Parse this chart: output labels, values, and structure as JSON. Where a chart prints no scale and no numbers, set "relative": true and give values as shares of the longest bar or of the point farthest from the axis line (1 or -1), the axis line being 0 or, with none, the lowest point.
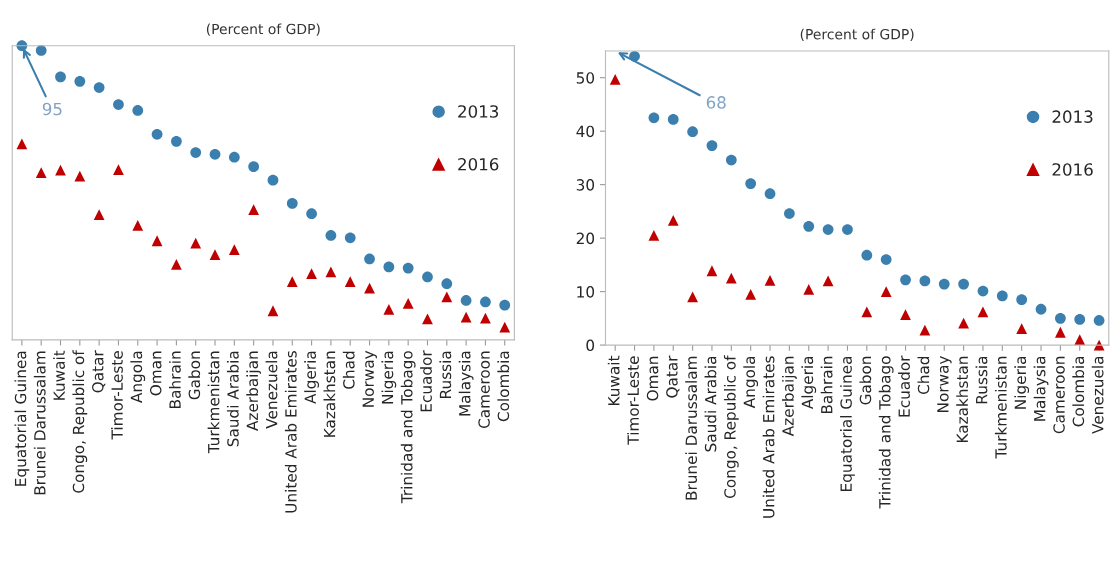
{
  "chart_data": [
    {
      "type": "scatter",
      "subtitle": "(Percent of GDP)",
      "relative": true,
      "grid": false,
      "legend": "top right",
      "annotations": [
        "95"
      ],
      "categories": [
        "Equatorial Guinea",
        "Brunei Darussalam",
        "Kuwait",
        "Congo, Republic of",
        "Qatar",
        "Timor-Leste",
        "Angola",
        "Oman",
        "Bahrain",
        "Gabon",
        "Turkmenistan",
        "Saudi Arabia",
        "Azerbaijan",
        "Venezuela",
        "United Arab Emirates",
        "Algeria",
        "Kazakhstan",
        "Chad",
        "Norway",
        "Nigeria",
        "Trinidad and Tobago",
        "Ecuador",
        "Russia",
        "Malaysia",
        "Cameroon",
        "Colombia"
      ],
      "series": [
        {
          "name": "2013",
          "color": "#3a7fae",
          "marker": "circle",
          "values": [
            1.0,
            0.984,
            0.894,
            0.879,
            0.858,
            0.8,
            0.78,
            0.699,
            0.675,
            0.637,
            0.631,
            0.621,
            0.589,
            0.543,
            0.464,
            0.429,
            0.355,
            0.347,
            0.275,
            0.248,
            0.244,
            0.214,
            0.191,
            0.134,
            0.129,
            0.118
          ]
        },
        {
          "name": "2016",
          "color": "#c00000",
          "marker": "triangle",
          "values": [
            0.666,
            0.569,
            0.577,
            0.557,
            0.426,
            0.579,
            0.389,
            0.337,
            0.257,
            0.329,
            0.29,
            0.307,
            0.443,
            0.099,
            0.198,
            0.225,
            0.231,
            0.198,
            0.176,
            0.104,
            0.124,
            0.071,
            0.146,
            0.077,
            0.074,
            0.043
          ]
        }
      ]
    },
    {
      "type": "scatter",
      "subtitle": "(Percent of GDP)",
      "ylim": [
        0,
        55
      ],
      "yticks": [
        0,
        10,
        20,
        30,
        40,
        50
      ],
      "grid": false,
      "legend": "top right",
      "annotations": [
        "68"
      ],
      "categories": [
        "Kuwait",
        "Timor-Leste",
        "Oman",
        "Qatar",
        "Brunei Darussalam",
        "Saudi Arabia",
        "Congo, Republic of",
        "Angola",
        "United Arab Emirates",
        "Azerbaijan",
        "Algeria",
        "Bahrain",
        "Equatorial Guinea",
        "Gabon",
        "Trinidad and Tobago",
        "Ecuador",
        "Chad",
        "Norway",
        "Kazakhstan",
        "Russia",
        "Turkmenistan",
        "Nigeria",
        "Malaysia",
        "Cameroon",
        "Colombia",
        "Venezuela"
      ],
      "series": [
        {
          "name": "2013",
          "color": "#3a7fae",
          "marker": "circle",
          "values": [
            null,
            54,
            42.5,
            42.2,
            39.9,
            37.3,
            34.6,
            30.2,
            28.3,
            24.6,
            22.2,
            21.6,
            21.6,
            16.8,
            16.0,
            12.2,
            12.0,
            11.4,
            11.4,
            10.1,
            9.2,
            8.5,
            6.7,
            5.0,
            4.8,
            4.6
          ]
        },
        {
          "name": "2016",
          "color": "#c00000",
          "marker": "triangle",
          "values": [
            49.7,
            null,
            20.5,
            23.3,
            9.0,
            13.9,
            12.5,
            9.5,
            12.1,
            null,
            10.4,
            12.0,
            null,
            6.2,
            10.0,
            5.7,
            2.8,
            null,
            4.1,
            6.2,
            null,
            3.1,
            null,
            2.4,
            1.0,
            0
          ]
        }
      ]
    }
  ]
}
